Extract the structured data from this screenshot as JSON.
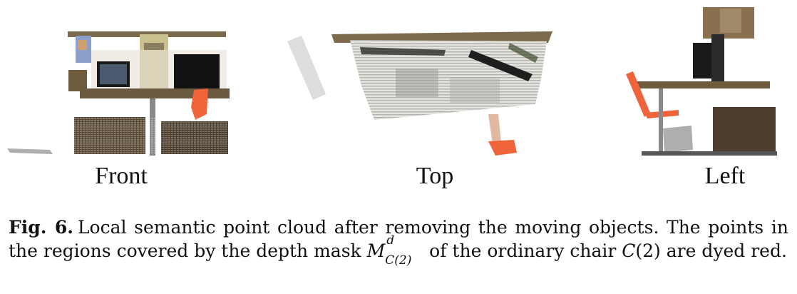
{
  "views": [
    {
      "id": "front",
      "label": "Front"
    },
    {
      "id": "top",
      "label": "Top"
    },
    {
      "id": "left",
      "label": "Left"
    }
  ],
  "caption": {
    "fig_label": "Fig. 6.",
    "text_1": "Local semantic point cloud after removing the moving objects. The points in the regions covered by the depth mask ",
    "mask_base": "M",
    "mask_sup": "d",
    "mask_sub": "C(2)",
    "text_2": " of the ordinary chair ",
    "chair_symbol": "C",
    "chair_arg": "(2)",
    "text_3": " are dyed red."
  },
  "colors": {
    "chair_highlight": "#f0643c",
    "desk": "#6e5b3c",
    "monitor": "#1a1a1a"
  }
}
